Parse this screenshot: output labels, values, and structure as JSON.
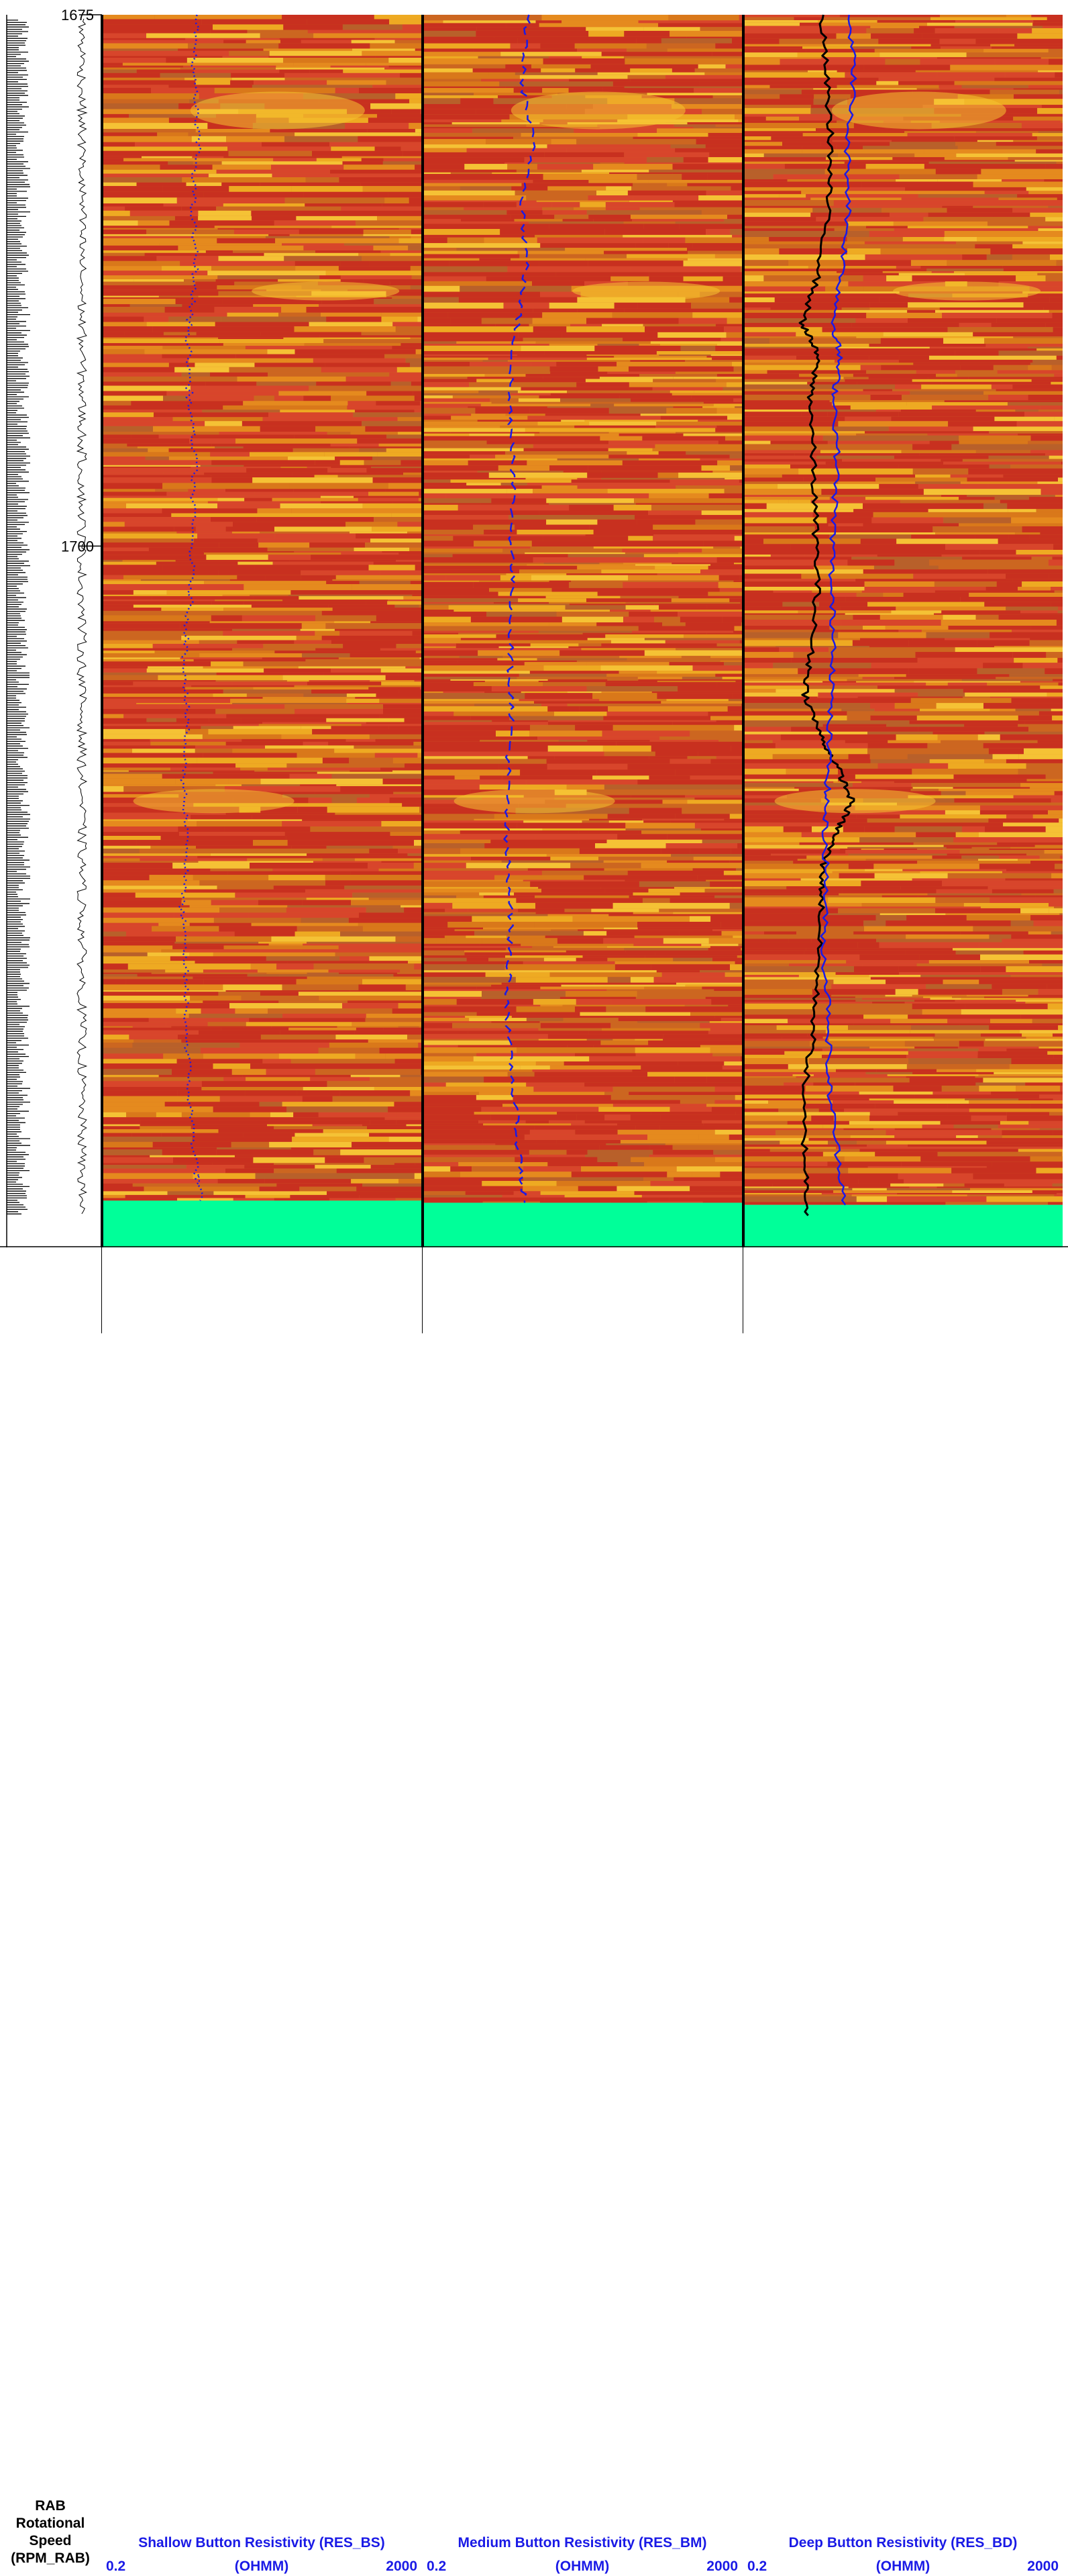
{
  "chart_data": {
    "type": "line",
    "depth_axis": {
      "range": [
        1675,
        1733
      ],
      "ticks": [
        "1675",
        "1700"
      ],
      "direction": "down"
    },
    "rpm_track": {
      "label_lines": [
        "RAB",
        "Rotational",
        "Speed",
        "(RPM_RAB)"
      ],
      "series_end_depth": 1731.5
    },
    "tracks": [
      {
        "title": "Shallow Button Resistivity (RES_BS)",
        "scale_min": "0.2",
        "unit": "(OHMM)",
        "scale_max": "2000",
        "image_end_depth": 1730.8,
        "series": [
          {
            "name": "RES_BS",
            "style": "dotted",
            "color": "#1a1ae6",
            "depth": [
              1675,
              1678,
              1681,
              1684,
              1687,
              1690,
              1693,
              1696,
              1699,
              1702,
              1705,
              1708,
              1711,
              1714,
              1717,
              1720,
              1723,
              1726,
              1729,
              1730.8
            ],
            "value": [
              3.1,
              2.8,
              3.2,
              2.7,
              3.0,
              2.4,
              2.5,
              2.9,
              2.7,
              2.6,
              2.2,
              2.3,
              2.1,
              2.4,
              2.0,
              2.2,
              2.3,
              2.5,
              3.0,
              3.4
            ]
          }
        ]
      },
      {
        "title": "Medium Button Resistivity (RES_BM)",
        "scale_min": "0.2",
        "unit": "(OHMM)",
        "scale_max": "2000",
        "image_end_depth": 1730.9,
        "series": [
          {
            "name": "RES_BM",
            "style": "dashed",
            "color": "#1a1ae6",
            "depth": [
              1675,
              1678,
              1681,
              1684,
              1687,
              1690,
              1693,
              1696,
              1699,
              1702,
              1705,
              1708,
              1711,
              1714,
              1717,
              1720,
              1723,
              1726,
              1729,
              1730.9
            ],
            "value": [
              4.2,
              3.5,
              4.8,
              3.6,
              4.0,
              2.9,
              2.4,
              2.8,
              2.6,
              2.7,
              2.5,
              2.6,
              2.3,
              2.2,
              2.6,
              2.4,
              2.3,
              2.8,
              3.3,
              3.8
            ]
          }
        ]
      },
      {
        "title": "Deep Button Resistivity (RES_BD)",
        "scale_min": "0.2",
        "unit": "(OHMM)",
        "scale_max": "2000",
        "image_end_depth": 1731.0,
        "series": [
          {
            "name": "RES_BD_solid",
            "style": "solid",
            "color": "#000000",
            "depth": [
              1675,
              1678,
              1681,
              1684,
              1687,
              1689.5,
              1691,
              1693,
              1696,
              1699,
              1702,
              1705,
              1707,
              1709,
              1710.5,
              1712,
              1713.5,
              1715,
              1717,
              1720,
              1723,
              1726,
              1729,
              1731.5
            ],
            "value": [
              1.9,
              2.2,
              2.5,
              2.3,
              1.8,
              1.1,
              1.7,
              1.4,
              1.5,
              1.6,
              1.7,
              1.4,
              1.2,
              1.9,
              3.1,
              4.6,
              2.9,
              2.0,
              1.9,
              1.7,
              1.5,
              1.1,
              1.2,
              1.3
            ]
          },
          {
            "name": "RES_BD_blue",
            "style": "solid",
            "color": "#1a1ae6",
            "depth": [
              1675,
              1678,
              1681,
              1684,
              1687,
              1689.5,
              1691,
              1693,
              1696,
              1699,
              1702,
              1705,
              1708,
              1711,
              1713,
              1716,
              1719,
              1722,
              1725,
              1728,
              1731
            ],
            "value": [
              4.3,
              4.9,
              4.0,
              4.2,
              3.5,
              2.7,
              3.2,
              2.8,
              3.0,
              2.7,
              2.5,
              2.8,
              2.4,
              2.3,
              2.1,
              2.2,
              2.0,
              2.4,
              2.3,
              2.9,
              3.8
            ]
          }
        ]
      }
    ]
  }
}
